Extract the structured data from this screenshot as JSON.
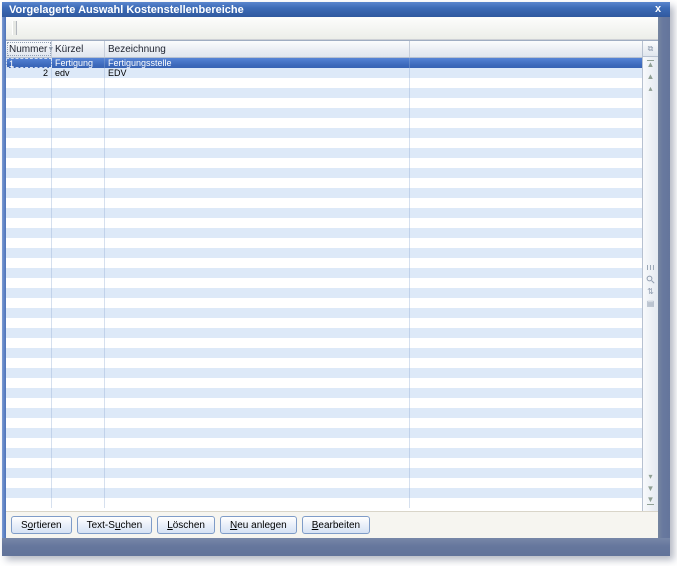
{
  "window": {
    "title": "Vorgelagerte Auswahl Kostenstellenbereiche",
    "close_label": "x"
  },
  "table": {
    "columns": [
      {
        "label": "Nummer",
        "sort_indicator": "▼"
      },
      {
        "label": "Kürzel",
        "sort_indicator": ""
      },
      {
        "label": "Bezeichnung",
        "sort_indicator": ""
      },
      {
        "label": "",
        "sort_indicator": ""
      }
    ],
    "rows": [
      {
        "cells": [
          "1",
          "Fertigung",
          "Fertigungsstelle",
          ""
        ],
        "selected": true,
        "focused_cell": 0
      },
      {
        "cells": [
          "2",
          "edv",
          "EDV",
          ""
        ],
        "selected": false
      }
    ],
    "empty_rows": 43
  },
  "scrollbar": {
    "icons_top": [
      "column-chooser-icon",
      "scroll-to-top-icon",
      "scroll-up-icon",
      "step-up-icon"
    ],
    "icons_middle": [
      "scrollbar-grip-icon",
      "search-icon",
      "sort-icon",
      "position-icon"
    ],
    "icons_bottom": [
      "step-down-icon",
      "scroll-down-icon",
      "scroll-to-bottom-icon"
    ]
  },
  "buttons": [
    {
      "name": "sortieren-button",
      "pre": "S",
      "key": "o",
      "post": "rtieren"
    },
    {
      "name": "text-suchen-button",
      "pre": "Text-S",
      "key": "u",
      "post": "chen"
    },
    {
      "name": "loeschen-button",
      "pre": "",
      "key": "L",
      "post": "öschen"
    },
    {
      "name": "neu-anlegen-button",
      "pre": "",
      "key": "N",
      "post": "eu anlegen"
    },
    {
      "name": "bearbeiten-button",
      "pre": "",
      "key": "B",
      "post": "earbeiten"
    }
  ],
  "colors": {
    "title_bar": "#3d6bb6",
    "selection": "#3c69bb",
    "row_stripe": "#dde9f8",
    "window_border_right": "#68799f",
    "window_border_left": "#5e82c4",
    "button_border": "#7f9cc8",
    "button_bar_bg": "#f6f5f0"
  }
}
